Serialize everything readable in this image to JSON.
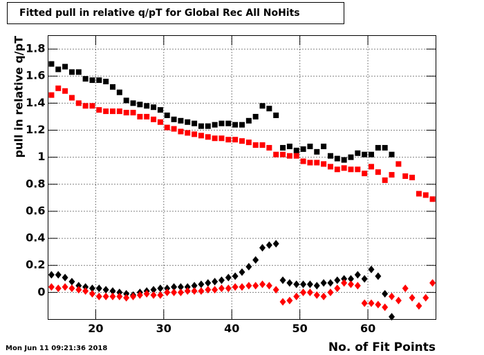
{
  "chart_data": {
    "type": "scatter",
    "title": "Fitted pull in relative q/pT for Global Rec All NoHits",
    "x_label": "No. of Fit Points",
    "y_label": "pull in relative q/pT",
    "timestamp": "Mon Jun 11 09:21:36 2018",
    "x": [
      13.5,
      14.5,
      15.5,
      16.5,
      17.5,
      18.5,
      19.5,
      20.5,
      21.5,
      22.5,
      23.5,
      24.5,
      25.5,
      26.5,
      27.5,
      28.5,
      29.5,
      30.5,
      31.5,
      32.5,
      33.5,
      34.5,
      35.5,
      36.5,
      37.5,
      38.5,
      39.5,
      40.5,
      41.5,
      42.5,
      43.5,
      44.5,
      45.5,
      46.5,
      47.5,
      48.5,
      49.5,
      50.5,
      51.5,
      52.5,
      53.5,
      54.5,
      55.5,
      56.5,
      57.5,
      58.5,
      59.5,
      60.5,
      61.5,
      62.5,
      63.5,
      64.5,
      65.5,
      66.5,
      67.5,
      68.5,
      69.5
    ],
    "series": [
      {
        "color": "#000000",
        "marker": "square",
        "values": [
          1.69,
          1.65,
          1.67,
          1.63,
          1.63,
          1.58,
          1.57,
          1.57,
          1.56,
          1.52,
          1.48,
          1.42,
          1.4,
          1.39,
          1.38,
          1.37,
          1.35,
          1.31,
          1.28,
          1.27,
          1.26,
          1.25,
          1.23,
          1.23,
          1.24,
          1.25,
          1.25,
          1.24,
          1.24,
          1.27,
          1.3,
          1.38,
          1.36,
          1.31,
          1.07,
          1.08,
          1.05,
          1.06,
          1.08,
          1.04,
          1.08,
          1.01,
          0.99,
          0.98,
          1.0,
          1.03,
          1.02,
          1.02,
          1.07,
          1.07,
          1.02,
          null,
          null,
          null,
          null,
          null,
          null
        ]
      },
      {
        "color": "#ff0000",
        "marker": "square",
        "values": [
          1.46,
          1.51,
          1.49,
          1.44,
          1.4,
          1.38,
          1.38,
          1.35,
          1.34,
          1.34,
          1.34,
          1.33,
          1.33,
          1.3,
          1.3,
          1.28,
          1.26,
          1.22,
          1.21,
          1.19,
          1.18,
          1.17,
          1.16,
          1.15,
          1.14,
          1.14,
          1.13,
          1.13,
          1.12,
          1.11,
          1.09,
          1.09,
          1.07,
          1.02,
          1.02,
          1.01,
          1.01,
          0.97,
          0.96,
          0.96,
          0.95,
          0.93,
          0.91,
          0.92,
          0.91,
          0.91,
          0.88,
          0.93,
          0.89,
          0.83,
          0.87,
          0.95,
          0.86,
          0.85,
          0.73,
          0.72,
          0.69
        ]
      },
      {
        "color": "#000000",
        "marker": "diamond",
        "values": [
          0.13,
          0.13,
          0.11,
          0.08,
          0.05,
          0.04,
          0.03,
          0.03,
          0.02,
          0.01,
          0.0,
          -0.01,
          -0.02,
          0.0,
          0.01,
          0.02,
          0.03,
          0.03,
          0.04,
          0.04,
          0.04,
          0.05,
          0.06,
          0.07,
          0.08,
          0.09,
          0.11,
          0.12,
          0.15,
          0.19,
          0.24,
          0.33,
          0.35,
          0.36,
          0.09,
          0.07,
          0.06,
          0.06,
          0.06,
          0.05,
          0.07,
          0.07,
          0.09,
          0.1,
          0.1,
          0.13,
          0.1,
          0.17,
          0.12,
          -0.01,
          -0.18,
          null,
          null,
          null,
          null,
          null,
          null
        ]
      },
      {
        "color": "#ff0000",
        "marker": "diamond",
        "values": [
          0.04,
          0.03,
          0.04,
          0.03,
          0.02,
          0.01,
          -0.01,
          -0.03,
          -0.03,
          -0.03,
          -0.03,
          -0.04,
          -0.03,
          -0.02,
          -0.01,
          -0.02,
          -0.02,
          0.0,
          0.0,
          0.0,
          0.01,
          0.01,
          0.01,
          0.02,
          0.02,
          0.03,
          0.03,
          0.04,
          0.04,
          0.05,
          0.05,
          0.06,
          0.05,
          0.02,
          -0.07,
          -0.06,
          -0.03,
          0.0,
          0.0,
          -0.02,
          -0.03,
          0.0,
          0.03,
          0.07,
          0.06,
          0.05,
          -0.08,
          -0.08,
          -0.09,
          -0.11,
          -0.03,
          -0.06,
          0.03,
          -0.04,
          -0.1,
          -0.04,
          0.07
        ]
      }
    ],
    "xlim": [
      13,
      70
    ],
    "ylim": [
      -0.2,
      1.9
    ],
    "xticks": [
      20,
      30,
      40,
      50,
      60
    ],
    "yticks": [
      0,
      0.2,
      0.4,
      0.6,
      0.8,
      1,
      1.2,
      1.4,
      1.6,
      1.8
    ],
    "grid": true
  }
}
